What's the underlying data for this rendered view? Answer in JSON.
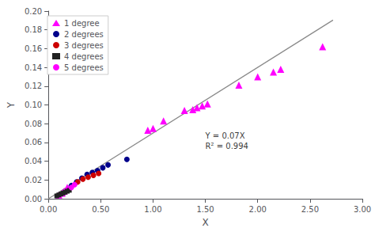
{
  "chart_data": {
    "type": "scatter",
    "xlabel": "X",
    "ylabel": "Y",
    "xlim": [
      0.0,
      3.0
    ],
    "ylim": [
      0.0,
      0.2
    ],
    "xticks": [
      {
        "value": 0.0,
        "label": "0.00"
      },
      {
        "value": 0.5,
        "label": "0.50"
      },
      {
        "value": 1.0,
        "label": "1.00"
      },
      {
        "value": 1.5,
        "label": "1.50"
      },
      {
        "value": 2.0,
        "label": "2.00"
      },
      {
        "value": 2.5,
        "label": "2.50"
      },
      {
        "value": 3.0,
        "label": "3.00"
      }
    ],
    "yticks": [
      {
        "value": 0.0,
        "label": "0.00"
      },
      0.02,
      0.04,
      0.06,
      0.08,
      {
        "value": 0.1,
        "label": "0.10"
      },
      0.12,
      0.14,
      0.16,
      0.18,
      {
        "value": 0.2,
        "label": "0.20"
      }
    ],
    "grid": false,
    "legend": "upper left",
    "annotations": [
      {
        "text": "Y = 0.07X\nR² = 0.994",
        "x": 1.5,
        "y": 0.062
      }
    ],
    "series": [
      {
        "type": "line",
        "color": "#888888",
        "line_style": "solid",
        "x": [
          0.0,
          2.72
        ],
        "values": [
          0.0,
          0.1904
        ]
      },
      {
        "name": "1 degree",
        "type": "scatter",
        "color": "#FF00FF",
        "marker": "triangle",
        "x": [
          0.1,
          0.13,
          0.15,
          0.18,
          0.95,
          1.0,
          1.1,
          1.3,
          1.38,
          1.42,
          1.47,
          1.52,
          1.82,
          2.0,
          2.15,
          2.22,
          2.62
        ],
        "values": [
          0.004,
          0.006,
          0.008,
          0.012,
          0.073,
          0.075,
          0.083,
          0.094,
          0.095,
          0.097,
          0.099,
          0.101,
          0.121,
          0.13,
          0.135,
          0.138,
          0.162
        ]
      },
      {
        "name": "2 degrees",
        "type": "scatter",
        "color": "#00008B",
        "marker": "circle",
        "x": [
          0.22,
          0.27,
          0.32,
          0.37,
          0.42,
          0.47,
          0.52,
          0.57,
          0.75
        ],
        "values": [
          0.014,
          0.018,
          0.022,
          0.026,
          0.028,
          0.03,
          0.033,
          0.036,
          0.042
        ]
      },
      {
        "name": "3 degrees",
        "type": "scatter",
        "color": "#CC0000",
        "marker": "circle",
        "x": [
          0.28,
          0.33,
          0.38,
          0.43,
          0.48
        ],
        "values": [
          0.018,
          0.021,
          0.023,
          0.025,
          0.027
        ]
      },
      {
        "name": "4 degrees",
        "type": "scatter",
        "color": "#222222",
        "marker": "square",
        "x": [
          0.08,
          0.1,
          0.12,
          0.14,
          0.16,
          0.18,
          0.2
        ],
        "values": [
          0.003,
          0.004,
          0.005,
          0.006,
          0.007,
          0.008,
          0.009
        ]
      },
      {
        "name": "5 degrees",
        "type": "scatter",
        "color": "#FF00FF",
        "marker": "circle",
        "x": [
          0.22,
          0.25
        ],
        "values": [
          0.012,
          0.015
        ]
      }
    ]
  }
}
